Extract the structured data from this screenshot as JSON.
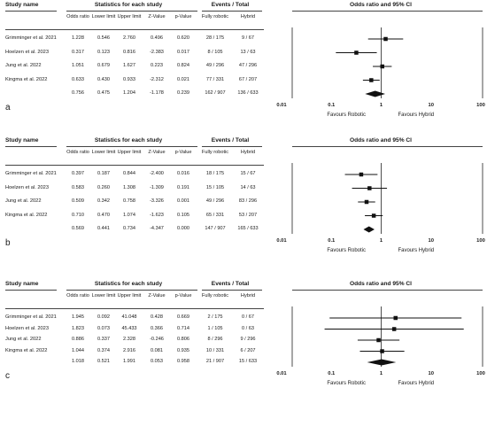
{
  "headers": {
    "study_name": "Study name",
    "stats": "Statistics for each study",
    "events": "Events / Total",
    "or_ci": "Odds ratio and 95% CI",
    "cols": [
      "Odds ratio",
      "Lower limit",
      "Upper limit",
      "Z-Value",
      "p-Value",
      "Fully robotic",
      "Hybrid"
    ]
  },
  "axis_ticks": [
    "0.01",
    "0.1",
    "1",
    "10",
    "100"
  ],
  "favours_left": "Favours Robotic",
  "favours_right": "Favours Hybrid",
  "chart_data": [
    {
      "type": "forest",
      "panel_label": "a",
      "studies": [
        {
          "name": "Grimminger et al. 2021",
          "or": "1.228",
          "lower": "0.546",
          "upper": "2.760",
          "z": "0.496",
          "p": "0.620",
          "robotic": "28 / 175",
          "hybrid": "9 / 67"
        },
        {
          "name": "Hoelzen et al. 2023",
          "or": "0.317",
          "lower": "0.123",
          "upper": "0.816",
          "z": "-2.383",
          "p": "0.017",
          "robotic": "8 / 105",
          "hybrid": "13 / 63"
        },
        {
          "name": "Jung et al. 2022",
          "or": "1.051",
          "lower": "0.679",
          "upper": "1.627",
          "z": "0.223",
          "p": "0.824",
          "robotic": "49 / 296",
          "hybrid": "47 / 296"
        },
        {
          "name": "Kingma et al. 2022",
          "or": "0.633",
          "lower": "0.430",
          "upper": "0.933",
          "z": "-2.312",
          "p": "0.021",
          "robotic": "77 / 331",
          "hybrid": "67 / 207"
        }
      ],
      "pooled": {
        "or": "0.756",
        "lower": "0.475",
        "upper": "1.204",
        "z": "-1.178",
        "p": "0.239",
        "robotic": "162 / 907",
        "hybrid": "136 / 633"
      },
      "xscale": "log",
      "xlim": [
        0.01,
        100
      ]
    },
    {
      "type": "forest",
      "panel_label": "b",
      "studies": [
        {
          "name": "Grimminger et al. 2021",
          "or": "0.397",
          "lower": "0.187",
          "upper": "0.844",
          "z": "-2.400",
          "p": "0.016",
          "robotic": "18 / 175",
          "hybrid": "15 / 67"
        },
        {
          "name": "Hoelzen et al. 2023",
          "or": "0.583",
          "lower": "0.260",
          "upper": "1.308",
          "z": "-1.309",
          "p": "0.191",
          "robotic": "15 / 105",
          "hybrid": "14 / 63"
        },
        {
          "name": "Jung et al. 2022",
          "or": "0.509",
          "lower": "0.342",
          "upper": "0.758",
          "z": "-3.326",
          "p": "0.001",
          "robotic": "49 / 296",
          "hybrid": "83 / 296"
        },
        {
          "name": "Kingma et al. 2022",
          "or": "0.710",
          "lower": "0.470",
          "upper": "1.074",
          "z": "-1.623",
          "p": "0.105",
          "robotic": "65 / 331",
          "hybrid": "53 / 207"
        }
      ],
      "pooled": {
        "or": "0.569",
        "lower": "0.441",
        "upper": "0.734",
        "z": "-4.347",
        "p": "0.000",
        "robotic": "147 / 907",
        "hybrid": "165 / 633"
      },
      "xscale": "log",
      "xlim": [
        0.01,
        100
      ]
    },
    {
      "type": "forest",
      "panel_label": "c",
      "studies": [
        {
          "name": "Grimminger et al. 2021",
          "or": "1.945",
          "lower": "0.092",
          "upper": "41.048",
          "z": "0.428",
          "p": "0.669",
          "robotic": "2 / 175",
          "hybrid": "0 / 67"
        },
        {
          "name": "Hoelzen et al. 2023",
          "or": "1.823",
          "lower": "0.073",
          "upper": "45.433",
          "z": "0.366",
          "p": "0.714",
          "robotic": "1 / 105",
          "hybrid": "0 / 63"
        },
        {
          "name": "Jung et al. 2022",
          "or": "0.886",
          "lower": "0.337",
          "upper": "2.328",
          "z": "-0.246",
          "p": "0.806",
          "robotic": "8 / 296",
          "hybrid": "9 / 296"
        },
        {
          "name": "Kingma et al. 2022",
          "or": "1.044",
          "lower": "0.374",
          "upper": "2.916",
          "z": "0.081",
          "p": "0.935",
          "robotic": "10 / 331",
          "hybrid": "6 / 207"
        }
      ],
      "pooled": {
        "or": "1.018",
        "lower": "0.521",
        "upper": "1.991",
        "z": "0.053",
        "p": "0.958",
        "robotic": "21 / 907",
        "hybrid": "15 / 633"
      },
      "xscale": "log",
      "xlim": [
        0.01,
        100
      ]
    }
  ]
}
